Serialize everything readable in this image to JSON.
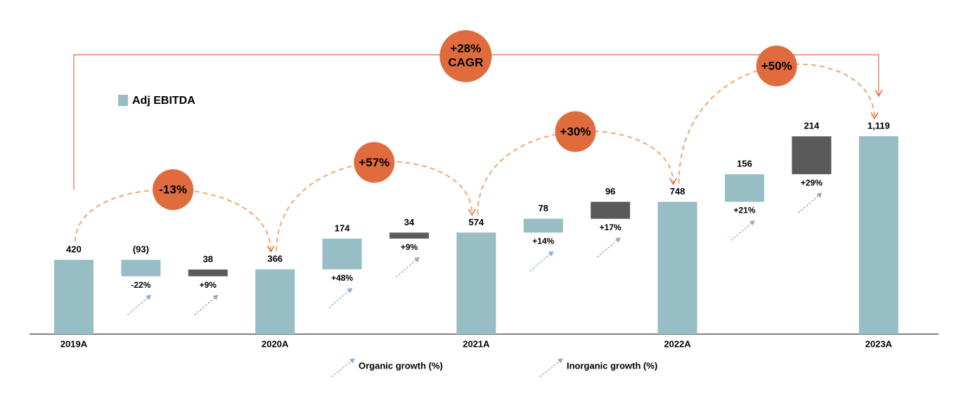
{
  "chart_data": {
    "type": "waterfall",
    "categories": [
      "2019A",
      null,
      null,
      "2020A",
      null,
      null,
      "2021A",
      null,
      null,
      "2022A",
      null,
      null,
      "2023A"
    ],
    "values": [
      420,
      -93,
      38,
      366,
      174,
      34,
      574,
      78,
      96,
      748,
      156,
      214,
      1119
    ],
    "value_labels": [
      null,
      "(93)",
      null,
      null,
      null,
      null,
      null,
      null,
      null,
      null,
      null,
      null,
      "1,119"
    ],
    "growth_labels": [
      null,
      "-22%",
      "+9%",
      null,
      "+48%",
      "+9%",
      null,
      "+14%",
      "+17%",
      null,
      "+21%",
      "+29%",
      null
    ],
    "colors": [
      "#97bdc5",
      "#97bdc5",
      "#5a5a5a",
      "#97bdc5",
      "#97bdc5",
      "#5a5a5a",
      "#97bdc5",
      "#97bdc5",
      "#5a5a5a",
      "#97bdc5",
      "#97bdc5",
      "#5a5a5a",
      "#97bdc5"
    ],
    "period_growth": [
      "-13%",
      "+57%",
      "+30%",
      "+50%"
    ],
    "cagr_label": [
      "+28%",
      "CAGR"
    ],
    "accent_color": "#e06c3e",
    "legend": [
      {
        "name": "Adj EBITDA",
        "color": "#97bdc5"
      }
    ],
    "growth_legend": [
      {
        "name": "Organic growth (%)",
        "color": "#8eaed6"
      },
      {
        "name": "Inorganic growth (%)",
        "color": "#a6a6a6"
      }
    ]
  }
}
